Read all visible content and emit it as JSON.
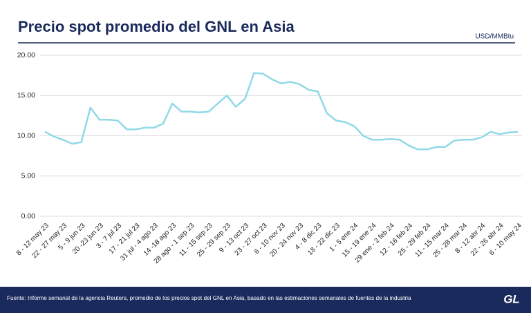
{
  "chart_data": {
    "type": "line",
    "title": "Precio spot promedio del GNL en Asia",
    "unit": "USD/MMBtu",
    "source": "Fuente: Informe semanal de la agencia Reuters, promedio de los precios spot del GNL en Asia, basado en las estimaciones semanales de fuentes de la industria",
    "logo": "GL",
    "categories": [
      "8 - 12 may 23",
      null,
      "22 - 27 may 23",
      null,
      "5 - 9 jun 23",
      null,
      "20 -23 jun 23",
      null,
      "3 - 7 jul 23",
      null,
      "17 - 21 jul 23",
      null,
      "31 jul - 4 ago 23",
      null,
      "14 -18 ago 23",
      null,
      "28 ago - 1 sep 23",
      null,
      "11 - 15 sep 23",
      null,
      "25 - 29 sep 23",
      null,
      "9 - 13 oct 23",
      null,
      "23 - 27 oct 23",
      null,
      "6 - 10 nov 23",
      null,
      "20 - 24 nov 23",
      null,
      "4 - 8 dic 23",
      null,
      "18 - 22 dic 23",
      null,
      "1 - 5 ene 24",
      null,
      "15 - 19 ene 24",
      null,
      "29 ene - 2 feb 24",
      null,
      "12 - 16 feb 24",
      null,
      "25 - 29 feb 24",
      null,
      "11 - 15 mar 24",
      null,
      "25 - 28 mar 24",
      null,
      "8 - 12 abr 24",
      null,
      "22 - 26 abr 24",
      null,
      "6 - 10 may 24"
    ],
    "series": [
      {
        "name": "Precio spot",
        "color": "#8fd9e8",
        "values": [
          10.5,
          9.9,
          9.5,
          9.0,
          9.2,
          13.5,
          12.0,
          12.0,
          11.9,
          10.8,
          10.8,
          11.0,
          11.0,
          11.5,
          14.0,
          13.0,
          13.0,
          12.9,
          13.0,
          14.0,
          15.0,
          13.6,
          14.6,
          17.8,
          17.7,
          17.0,
          16.5,
          16.7,
          16.4,
          15.7,
          15.5,
          12.8,
          11.9,
          11.7,
          11.2,
          10.0,
          9.5,
          9.5,
          9.6,
          9.5,
          8.8,
          8.3,
          8.3,
          8.6,
          8.6,
          9.4,
          9.5,
          9.5,
          9.8,
          10.5,
          10.2,
          10.4,
          10.5
        ]
      }
    ],
    "ylim": [
      0,
      20
    ],
    "yticks": [
      {
        "value": 0,
        "label": "0.00"
      },
      {
        "value": 5,
        "label": "5.00"
      },
      {
        "value": 10,
        "label": "10.00"
      },
      {
        "value": 15,
        "label": "15.00"
      },
      {
        "value": 20,
        "label": "20.00"
      }
    ],
    "grid": true
  }
}
